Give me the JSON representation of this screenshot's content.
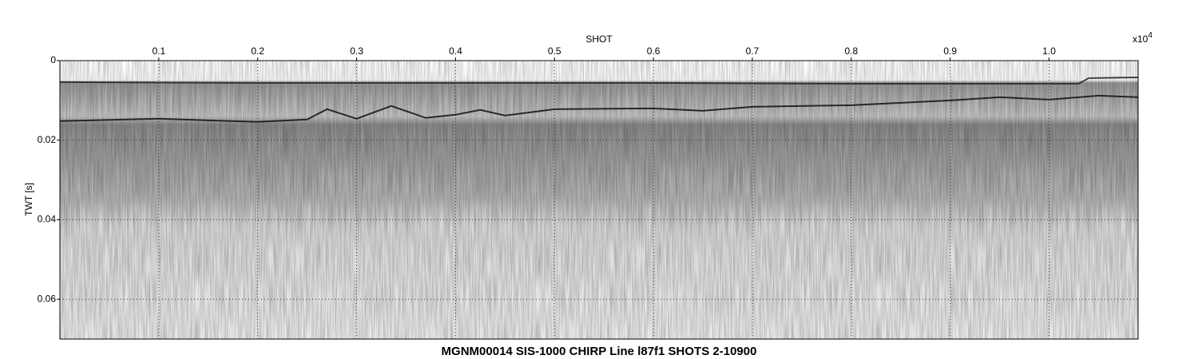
{
  "chart_data": {
    "type": "seismic",
    "title": "MGNM00014 SIS-1000 CHIRP Line l87f1 SHOTS 2-10900",
    "xlabel": "SHOT",
    "ylabel": "TWT [s]",
    "x_multiplier": {
      "base": "x10",
      "exponent": "4"
    },
    "xlim": [
      0,
      1.09
    ],
    "xticks": [
      0.1,
      0.2,
      0.3,
      0.4,
      0.5,
      0.6,
      0.7,
      0.8,
      0.9,
      {
        "value": 1,
        "label": "1.0"
      }
    ],
    "ylim": [
      0,
      0.07
    ],
    "yticks": [
      0,
      0.02,
      0.04,
      0.06
    ],
    "y_inverted": true,
    "grid": true,
    "series": [
      {
        "color": "#222222",
        "x": [
          0,
          0.2,
          0.4,
          0.6,
          0.8,
          1.0,
          1.03,
          1.04,
          1.09
        ],
        "values": [
          0.0054,
          0.0056,
          0.0056,
          0.0056,
          0.0058,
          0.0058,
          0.0058,
          0.0044,
          0.0042
        ]
      },
      {
        "color": "#111111",
        "x": [
          0,
          0.1,
          0.2,
          0.25,
          0.27,
          0.3,
          0.335,
          0.37,
          0.4,
          0.425,
          0.45,
          0.5,
          0.6,
          0.65,
          0.7,
          0.8,
          0.9,
          0.95,
          1.0,
          1.05,
          1.09
        ],
        "values": [
          0.0152,
          0.0146,
          0.0154,
          0.0148,
          0.0122,
          0.0146,
          0.0114,
          0.0144,
          0.0136,
          0.0124,
          0.0138,
          0.0122,
          0.012,
          0.0126,
          0.0116,
          0.0112,
          0.01,
          0.0092,
          0.0098,
          0.0088,
          0.0092
        ]
      }
    ]
  }
}
